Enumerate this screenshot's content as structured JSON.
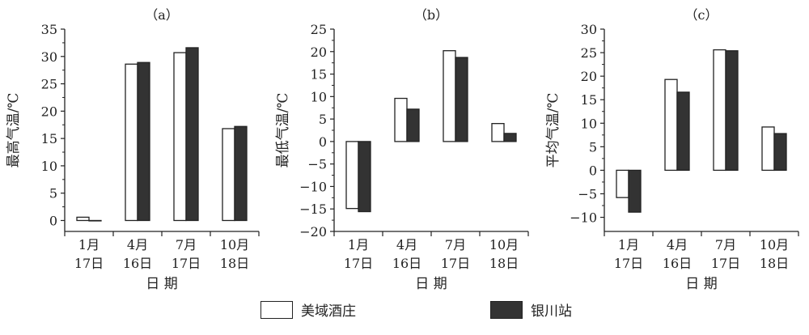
{
  "colors": {
    "open": "#ffffff",
    "dark": "#333333",
    "stroke": "#222222"
  },
  "legend": {
    "series_a": "美域酒庄",
    "series_b": "银川站"
  },
  "chart_data": [
    {
      "type": "bar",
      "panel_label": "（a）",
      "ylabel": "最高气温/℃",
      "xlabel": "日 期",
      "categories": [
        [
          "1月",
          "17日"
        ],
        [
          "4月",
          "16日"
        ],
        [
          "7月",
          "17日"
        ],
        [
          "10月",
          "18日"
        ]
      ],
      "ylim": [
        -2,
        35
      ],
      "yticks": [
        0,
        5,
        10,
        15,
        20,
        25,
        30,
        35
      ],
      "series": [
        {
          "name": "美域酒庄",
          "values": [
            0.6,
            28.6,
            30.7,
            16.8
          ]
        },
        {
          "name": "银川站",
          "values": [
            0.0,
            28.9,
            31.6,
            17.2
          ]
        }
      ]
    },
    {
      "type": "bar",
      "panel_label": "（b）",
      "ylabel": "最低气温/℃",
      "xlabel": "日 期",
      "categories": [
        [
          "1月",
          "17日"
        ],
        [
          "4月",
          "16日"
        ],
        [
          "7月",
          "17日"
        ],
        [
          "10月",
          "18日"
        ]
      ],
      "ylim": [
        -20,
        25
      ],
      "yticks": [
        -20,
        -15,
        -10,
        -5,
        0,
        5,
        10,
        15,
        20,
        25
      ],
      "series": [
        {
          "name": "美域酒庄",
          "values": [
            -14.9,
            9.6,
            20.2,
            4.0
          ]
        },
        {
          "name": "银川站",
          "values": [
            -15.6,
            7.2,
            18.7,
            1.8
          ]
        }
      ]
    },
    {
      "type": "bar",
      "panel_label": "（c）",
      "ylabel": "平均气温/℃",
      "xlabel": "日 期",
      "categories": [
        [
          "1月",
          "17日"
        ],
        [
          "4月",
          "16日"
        ],
        [
          "7月",
          "17日"
        ],
        [
          "10月",
          "18日"
        ]
      ],
      "ylim": [
        -13,
        30
      ],
      "yticks": [
        -10,
        -5,
        0,
        5,
        10,
        15,
        20,
        25,
        30
      ],
      "series": [
        {
          "name": "美域酒庄",
          "values": [
            -5.8,
            19.3,
            25.6,
            9.2
          ]
        },
        {
          "name": "银川站",
          "values": [
            -8.9,
            16.6,
            25.4,
            7.8
          ]
        }
      ]
    }
  ]
}
